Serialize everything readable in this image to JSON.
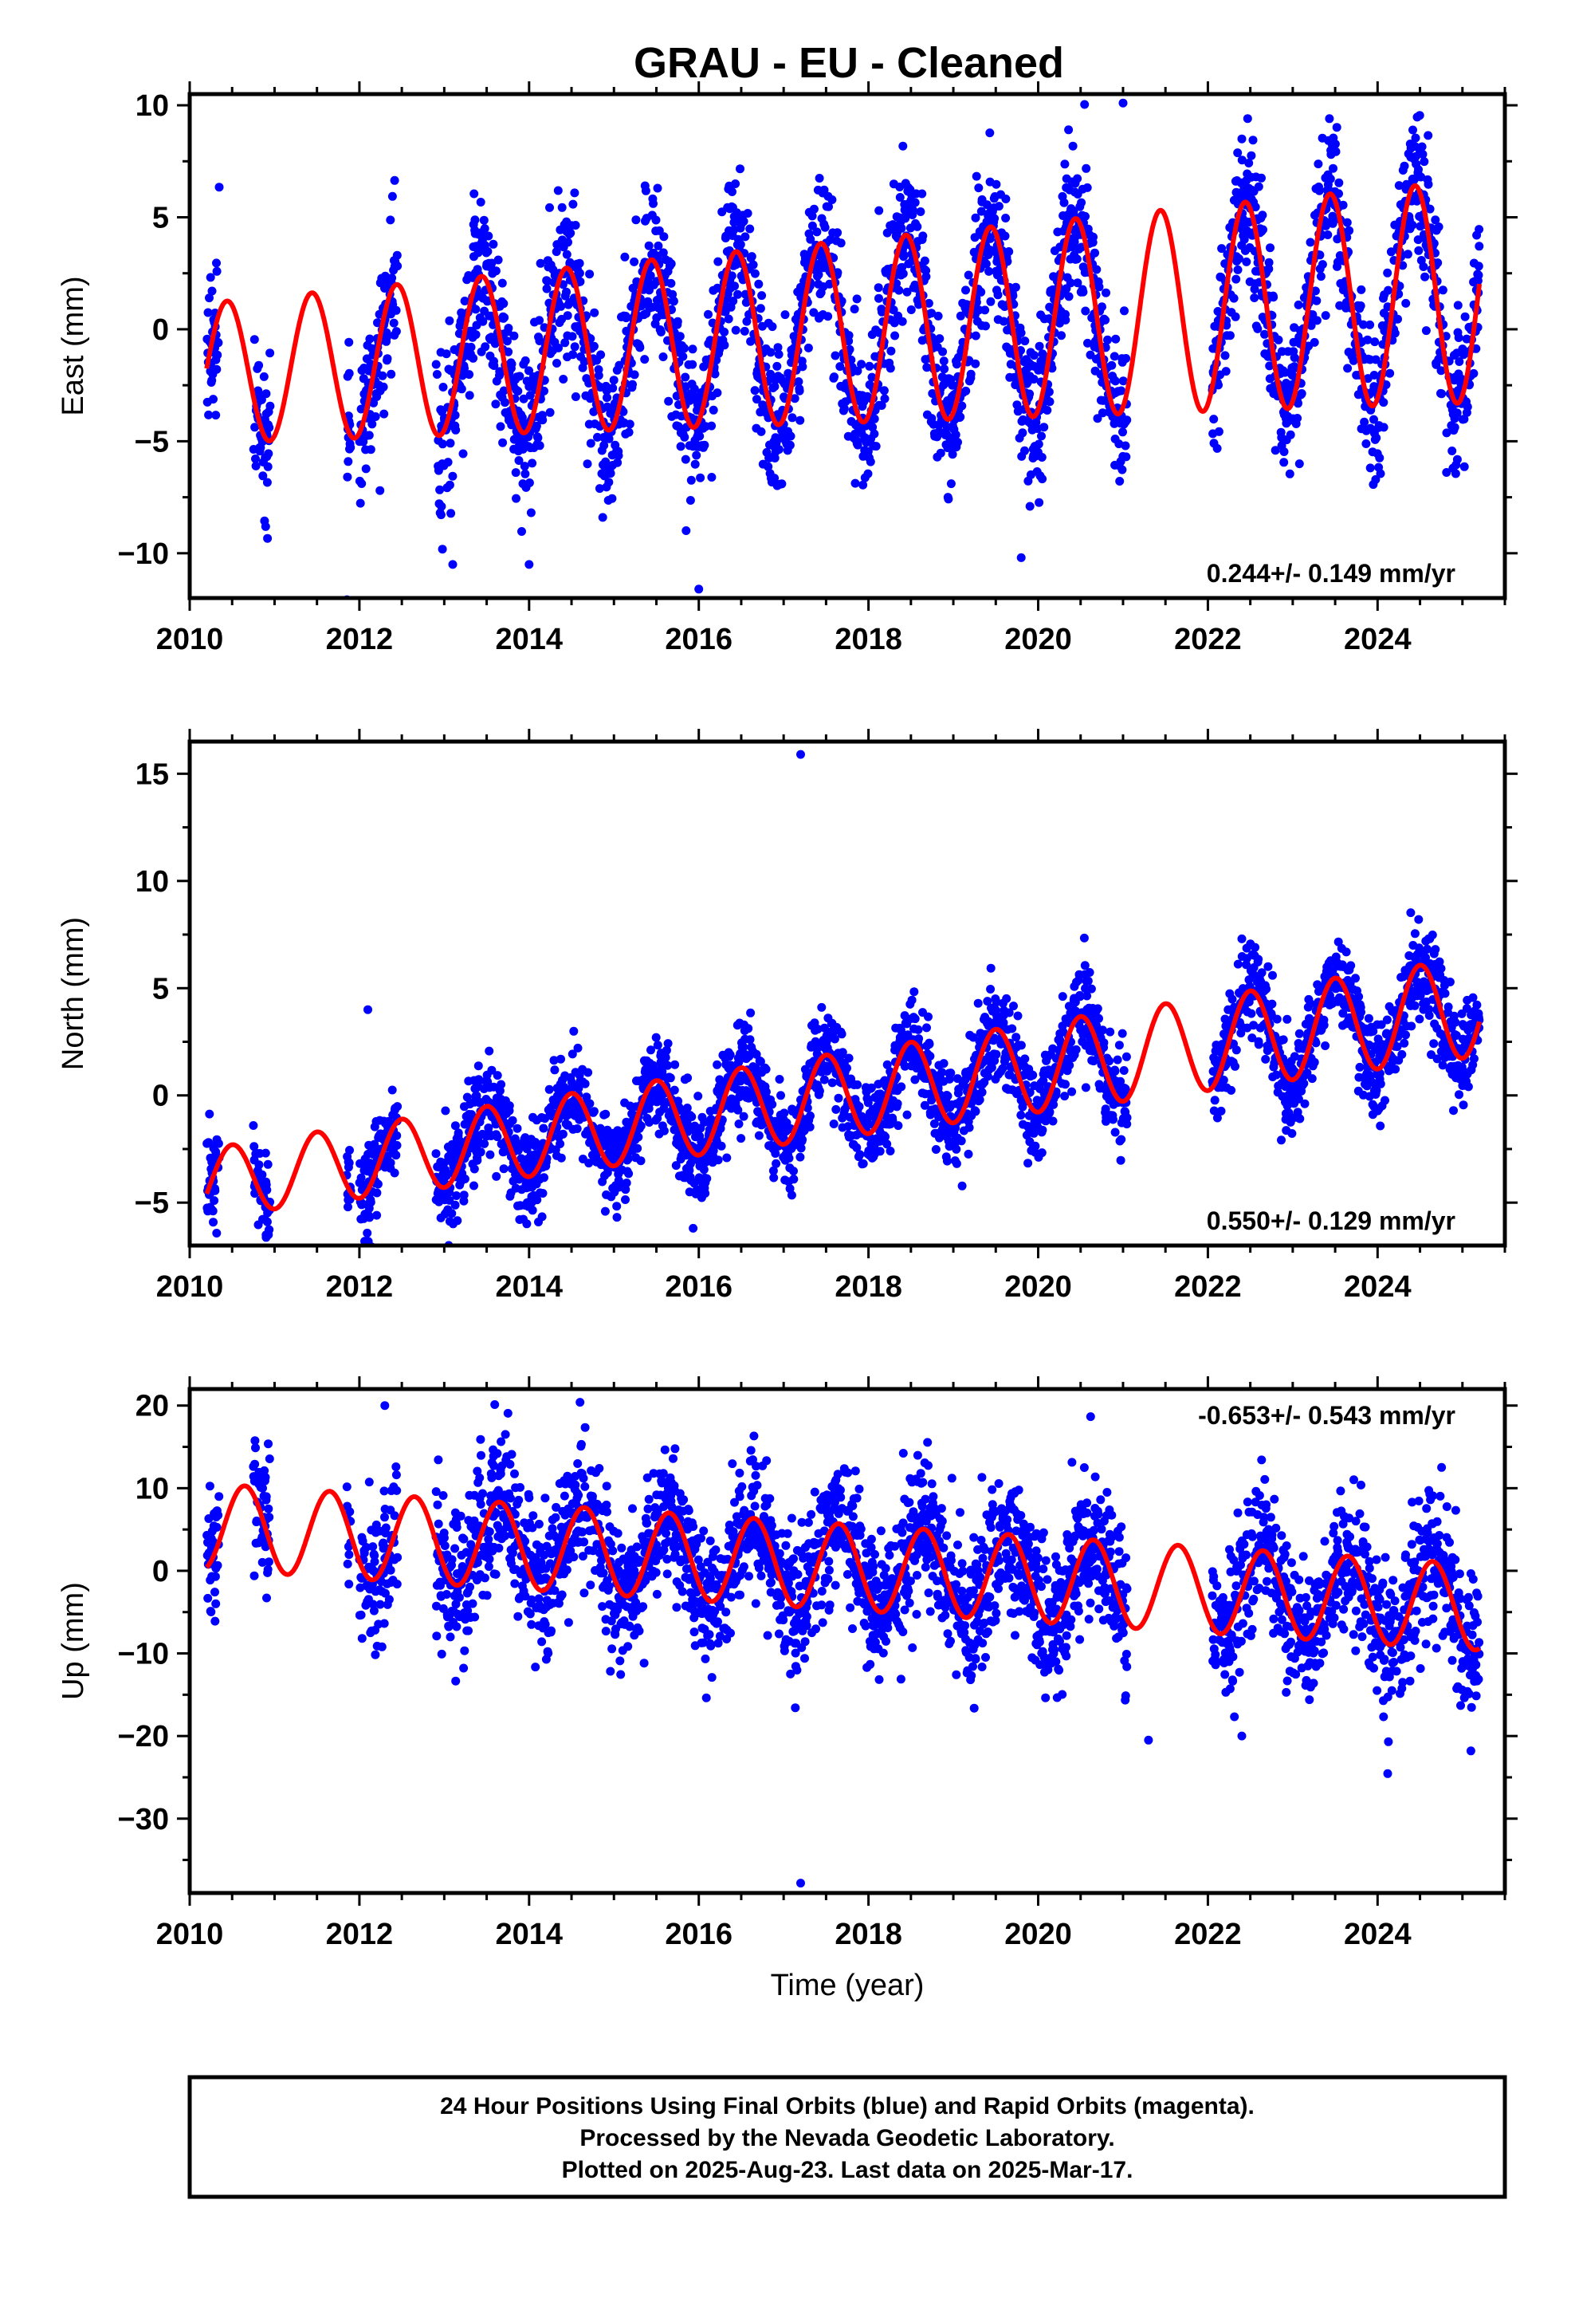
{
  "title": "GRAU  - EU - Cleaned",
  "colors": {
    "points": "#0000ff",
    "model": "#ff0000",
    "frame": "#000000"
  },
  "footer": {
    "lines": [
      "24 Hour Positions Using Final Orbits (blue) and Rapid Orbits (magenta).",
      "Processed by the Nevada Geodetic Laboratory.",
      "Plotted on 2025-Aug-23. Last data on 2025-Mar-17."
    ]
  },
  "chart_data": [
    {
      "type": "scatter",
      "ylabel": "East (mm)",
      "xlabel": "",
      "xlim": [
        2010,
        2025.5
      ],
      "ylim": [
        -12,
        10.5
      ],
      "xticks": [
        2010,
        2012,
        2014,
        2016,
        2018,
        2020,
        2022,
        2024
      ],
      "yticks": [
        -10,
        -5,
        0,
        5,
        10
      ],
      "rate_text": "0.244+/- 0.149 mm/yr",
      "model": {
        "offset": -2.0,
        "rate": 0.244,
        "amplitude": 3.1,
        "peak_phase": 0.44,
        "amp_growth": 0.04
      },
      "scatter": {
        "sigma": 1.7
      },
      "outliers": [
        [
          2021.0,
          10.1
        ],
        [
          2016.0,
          -11.6
        ],
        [
          2013.1,
          -10.5
        ],
        [
          2014.0,
          -10.5
        ],
        [
          2019.8,
          -10.2
        ],
        [
          2022.4,
          8.5
        ]
      ],
      "series": [
        {
          "name": "Final Orbits",
          "color": "#0000ff"
        },
        {
          "name": "Rapid Orbits",
          "color": "#ff00ff"
        }
      ]
    },
    {
      "type": "scatter",
      "ylabel": "North (mm)",
      "xlabel": "",
      "xlim": [
        2010,
        2025.5
      ],
      "ylim": [
        -7,
        16.5
      ],
      "xticks": [
        2010,
        2012,
        2014,
        2016,
        2018,
        2020,
        2022,
        2024
      ],
      "yticks": [
        -5,
        0,
        5,
        10,
        15
      ],
      "rate_text": "0.550+/- 0.129 mm/yr",
      "model": {
        "offset": -4.2,
        "rate": 0.55,
        "amplitude": 1.6,
        "peak_phase": 0.5,
        "amp_growth": 0.03
      },
      "scatter": {
        "sigma": 1.1
      },
      "outliers": [
        [
          2017.2,
          15.9
        ],
        [
          2012.1,
          4.0
        ],
        [
          2024.6,
          7.3
        ],
        [
          2022.4,
          7.3
        ],
        [
          2010.9,
          -6.5
        ]
      ],
      "series": [
        {
          "name": "Final Orbits",
          "color": "#0000ff"
        },
        {
          "name": "Rapid Orbits",
          "color": "#ff00ff"
        }
      ]
    },
    {
      "type": "scatter",
      "ylabel": "Up (mm)",
      "xlabel": "Time (year)",
      "xlim": [
        2010,
        2025.5
      ],
      "ylim": [
        -39,
        22
      ],
      "xticks": [
        2010,
        2012,
        2014,
        2016,
        2018,
        2020,
        2022,
        2024
      ],
      "yticks": [
        -30,
        -20,
        -10,
        0,
        10,
        20
      ],
      "rate_text": "-0.653+/- 0.543 mm/yr",
      "model": {
        "offset": 5.5,
        "rate": -0.653,
        "amplitude": 5.2,
        "peak_phase": 0.65,
        "amp_growth": 0.0
      },
      "scatter": {
        "sigma": 4.2
      },
      "outliers": [
        [
          2017.2,
          -37.8
        ],
        [
          2025.1,
          -21.8
        ],
        [
          2014.6,
          20.4
        ],
        [
          2012.3,
          20.0
        ],
        [
          2021.3,
          -20.5
        ],
        [
          2022.4,
          -20.0
        ]
      ],
      "series": [
        {
          "name": "Final Orbits",
          "color": "#0000ff"
        },
        {
          "name": "Rapid Orbits",
          "color": "#ff00ff"
        }
      ]
    }
  ]
}
